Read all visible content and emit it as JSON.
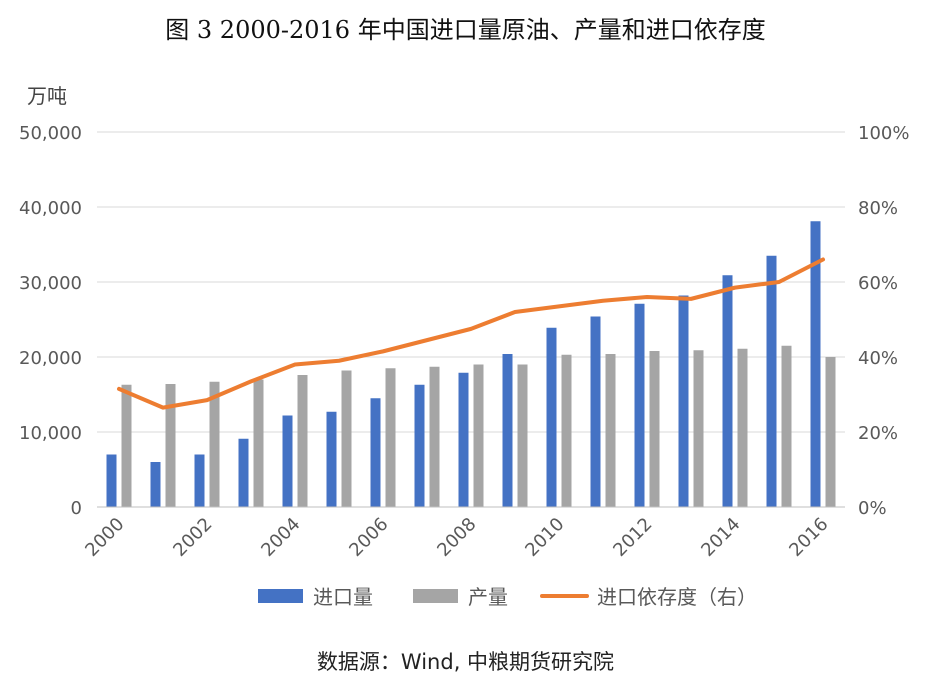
{
  "title": "图 3 2000-2016 年中国进口量原油、产量和进口依存度",
  "source": "数据源：Wind, 中粮期货研究院",
  "chart_data": {
    "type": "bar",
    "left_unit": "万吨",
    "x": [
      2000,
      2001,
      2002,
      2003,
      2004,
      2005,
      2006,
      2007,
      2008,
      2009,
      2010,
      2011,
      2012,
      2013,
      2014,
      2015,
      2016
    ],
    "x_tick_labels": [
      "2000",
      "2002",
      "2004",
      "2006",
      "2008",
      "2010",
      "2012",
      "2014",
      "2016"
    ],
    "y_left_ticks": [
      "0",
      "10,000",
      "20,000",
      "30,000",
      "40,000",
      "50,000"
    ],
    "y_right_ticks": [
      "0%",
      "20%",
      "40%",
      "60%",
      "80%",
      "100%"
    ],
    "ylim_left": [
      0,
      50000
    ],
    "ylim_right": [
      0,
      100
    ],
    "grid": true,
    "legend_position": "bottom",
    "series": [
      {
        "name": "进口量",
        "kind": "bar",
        "axis": "left",
        "color": "#4472c4",
        "values": [
          7000,
          6000,
          7000,
          9100,
          12200,
          12700,
          14500,
          16300,
          17900,
          20400,
          23900,
          25400,
          27100,
          28200,
          30900,
          33500,
          38100
        ]
      },
      {
        "name": "产量",
        "kind": "bar",
        "axis": "left",
        "color": "#a5a5a5",
        "values": [
          16300,
          16400,
          16700,
          17000,
          17600,
          18200,
          18500,
          18700,
          19000,
          19000,
          20300,
          20400,
          20800,
          20900,
          21100,
          21500,
          20000
        ]
      },
      {
        "name": "进口依存度（右）",
        "kind": "line",
        "axis": "right",
        "color": "#ed7d31",
        "values": [
          31.5,
          26.5,
          28.5,
          33.5,
          38,
          39,
          41.5,
          44.5,
          47.5,
          52,
          53.5,
          55,
          56,
          55.5,
          58.5,
          60,
          66
        ]
      }
    ]
  }
}
